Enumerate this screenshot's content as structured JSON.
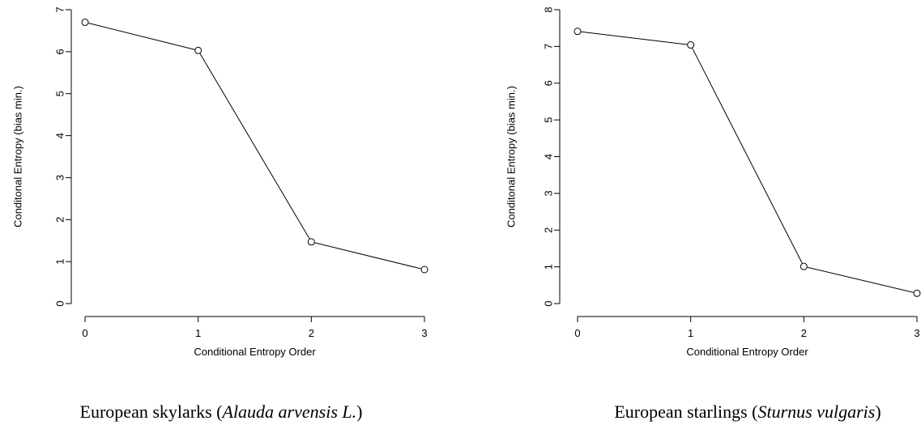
{
  "chart_data": [
    {
      "type": "line",
      "xlabel": "Conditional Entropy Order",
      "ylabel": "Conditonal Entropy (bias min.)",
      "x": [
        0,
        1,
        2,
        3
      ],
      "series": [
        {
          "values": [
            6.7,
            6.03,
            1.47,
            0.81
          ]
        }
      ],
      "xlim": [
        0,
        3
      ],
      "ylim": [
        0,
        7
      ],
      "xticks": [
        "0",
        "1",
        "2",
        "3"
      ],
      "yticks": [
        "0",
        "1",
        "2",
        "3",
        "4",
        "5",
        "6",
        "7"
      ],
      "marker": "open-circle",
      "grid": false,
      "caption": {
        "prefix": "European skylarks (",
        "species": "Alauda arvensis L.",
        "suffix": ")"
      }
    },
    {
      "type": "line",
      "xlabel": "Conditional Entropy Order",
      "ylabel": "Conditonal Entropy (bias min.)",
      "x": [
        0,
        1,
        2,
        3
      ],
      "series": [
        {
          "values": [
            7.41,
            7.04,
            1.01,
            0.28
          ]
        }
      ],
      "xlim": [
        0,
        3
      ],
      "ylim": [
        0,
        8
      ],
      "xticks": [
        "0",
        "1",
        "2",
        "3"
      ],
      "yticks": [
        "0",
        "1",
        "2",
        "3",
        "4",
        "5",
        "6",
        "7",
        "8"
      ],
      "marker": "open-circle",
      "grid": false,
      "caption": {
        "prefix": "European starlings (",
        "species": "Sturnus vulgaris",
        "suffix": ")"
      }
    }
  ]
}
